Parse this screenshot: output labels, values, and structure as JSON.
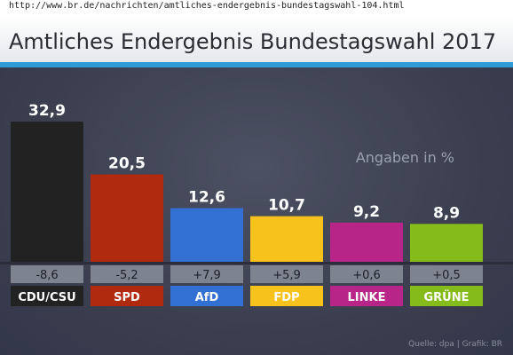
{
  "browser": {
    "url": "http://www.br.de/nachrichten/amtliches-endergebnis-bundestagswahl-104.html"
  },
  "header": {
    "title": "Amtliches Endergebnis Bundestagswahl 2017",
    "accent_color": "#2f9bd6"
  },
  "note": "Angaben in %",
  "source": "Quelle: dpa | Grafik: BR",
  "chart_data": {
    "type": "bar",
    "categories": [
      "CDU/CSU",
      "SPD",
      "AfD",
      "FDP",
      "LINKE",
      "GRÜNE"
    ],
    "values": [
      32.9,
      20.5,
      12.6,
      10.7,
      9.2,
      8.9
    ],
    "value_labels": [
      "32,9",
      "20,5",
      "12,6",
      "10,7",
      "9,2",
      "8,9"
    ],
    "changes": [
      "-8,6",
      "-5,2",
      "+7,9",
      "+5,9",
      "+0,6",
      "+0,5"
    ],
    "colors": [
      "#222222",
      "#b02a10",
      "#3370d4",
      "#f7c21c",
      "#b62587",
      "#86bb1c"
    ],
    "label_text_colors": [
      "#ffffff",
      "#ffffff",
      "#ffffff",
      "#ffffff",
      "#ffffff",
      "#ffffff"
    ],
    "ylim": [
      0,
      35
    ],
    "unit": "%"
  }
}
